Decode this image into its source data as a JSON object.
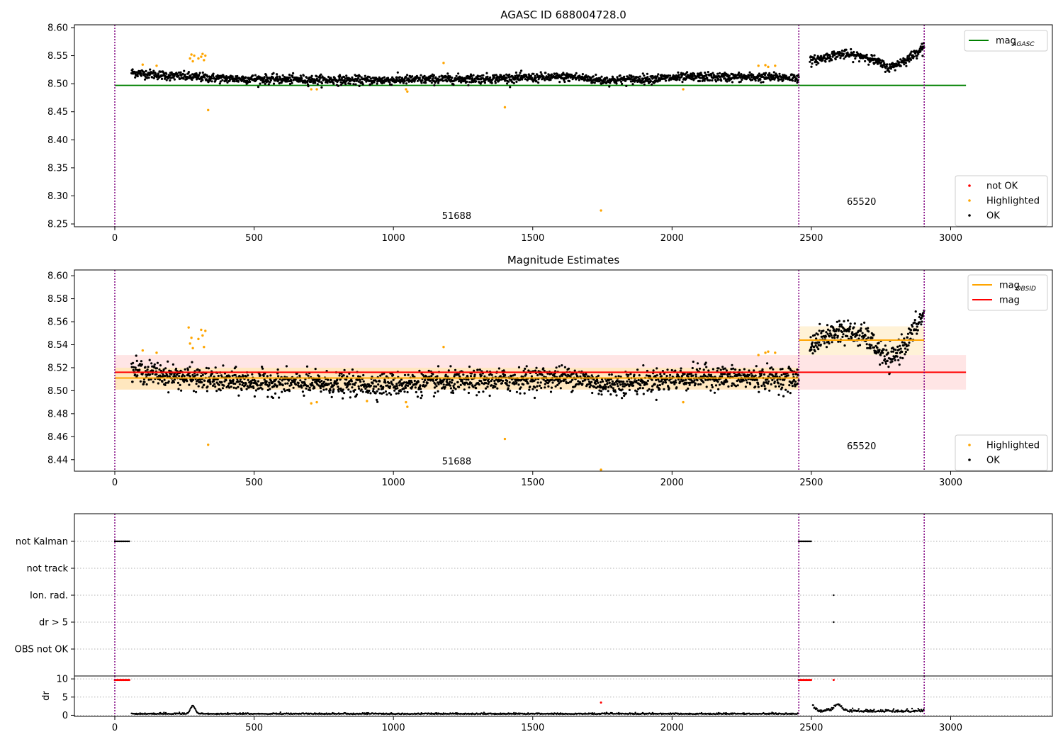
{
  "colors": {
    "ok": "#000000",
    "highlighted": "#ffa500",
    "not_ok": "#ff0000",
    "agasc_line": "#008000",
    "obsid_line": "#ffa500",
    "mag_line": "#ff0000",
    "obsid_band": "#ffe8b8",
    "mag_band": "#ffe0e0",
    "obsid_boundary": "#800080",
    "grid": "#b0b0b0"
  },
  "chart_data": [
    {
      "type": "scatter",
      "title": "AGASC ID 688004728.0",
      "xlim": [
        -145,
        3365
      ],
      "ylim": [
        8.245,
        8.605
      ],
      "xticks": [
        0,
        500,
        1000,
        1500,
        2000,
        2500,
        3000
      ],
      "yticks": [
        8.25,
        8.3,
        8.35,
        8.4,
        8.45,
        8.5,
        8.55,
        8.6
      ],
      "x_tick_labels": [
        "0",
        "500",
        "1000",
        "1500",
        "2000",
        "2500",
        "3000"
      ],
      "y_tick_labels": [
        "8.25",
        "8.30",
        "8.35",
        "8.40",
        "8.45",
        "8.50",
        "8.55",
        "8.60"
      ],
      "obsid_boundaries": [
        0,
        2455,
        2905
      ],
      "hlines": [
        {
          "name": "mag_AGASC",
          "y": 8.497,
          "x0": 0,
          "x1": 3055
        }
      ],
      "obsid_annotations": [
        {
          "text": "51688",
          "x": 1227,
          "y": 8.259
        },
        {
          "text": "65520",
          "x": 2680,
          "y": 8.284
        }
      ],
      "segments": [
        {
          "x0": 60,
          "x1": 2455,
          "base": 8.51,
          "noise": 0.004,
          "trend": [
            [
              60,
              8.52
            ],
            [
              200,
              8.514
            ],
            [
              400,
              8.509
            ],
            [
              900,
              8.506
            ],
            [
              1300,
              8.509
            ],
            [
              1650,
              8.512
            ],
            [
              1750,
              8.506
            ],
            [
              2100,
              8.512
            ],
            [
              2455,
              8.511
            ]
          ]
        },
        {
          "x0": 2495,
          "x1": 2905,
          "base": 8.545,
          "noise": 0.004,
          "trend": [
            [
              2495,
              8.54
            ],
            [
              2600,
              8.553
            ],
            [
              2700,
              8.548
            ],
            [
              2780,
              8.528
            ],
            [
              2850,
              8.545
            ],
            [
              2905,
              8.567
            ]
          ]
        }
      ],
      "highlighted_points": [
        [
          270,
          8.545
        ],
        [
          275,
          8.552
        ],
        [
          280,
          8.54
        ],
        [
          285,
          8.55
        ],
        [
          300,
          8.545
        ],
        [
          310,
          8.548
        ],
        [
          315,
          8.553
        ],
        [
          320,
          8.542
        ],
        [
          325,
          8.55
        ],
        [
          100,
          8.534
        ],
        [
          150,
          8.532
        ],
        [
          335,
          8.453
        ],
        [
          705,
          8.49
        ],
        [
          725,
          8.49
        ],
        [
          1045,
          8.49
        ],
        [
          1050,
          8.486
        ],
        [
          1180,
          8.537
        ],
        [
          1400,
          8.458
        ],
        [
          1745,
          8.274
        ],
        [
          2040,
          8.49
        ],
        [
          2310,
          8.532
        ],
        [
          2335,
          8.533
        ],
        [
          2345,
          8.53
        ],
        [
          2370,
          8.532
        ]
      ],
      "legends": [
        {
          "position": "top-right",
          "entries": [
            {
              "label": "mag",
              "sub": "AGASC",
              "marker": "line",
              "color": "#008000"
            }
          ]
        },
        {
          "position": "bottom-right",
          "entries": [
            {
              "label": "not OK",
              "marker": "dot",
              "color": "#ff0000"
            },
            {
              "label": "Highlighted",
              "marker": "dot",
              "color": "#ffa500"
            },
            {
              "label": "OK",
              "marker": "dot",
              "color": "#000000"
            }
          ]
        }
      ]
    },
    {
      "type": "scatter",
      "title": "Magnitude Estimates",
      "xlim": [
        -145,
        3365
      ],
      "ylim": [
        8.43,
        8.605
      ],
      "xticks": [
        0,
        500,
        1000,
        1500,
        2000,
        2500,
        3000
      ],
      "yticks": [
        8.44,
        8.46,
        8.48,
        8.5,
        8.52,
        8.54,
        8.56,
        8.58,
        8.6
      ],
      "x_tick_labels": [
        "0",
        "500",
        "1000",
        "1500",
        "2000",
        "2500",
        "3000"
      ],
      "y_tick_labels": [
        "8.44",
        "8.46",
        "8.48",
        "8.50",
        "8.52",
        "8.54",
        "8.56",
        "8.58",
        "8.60"
      ],
      "obsid_boundaries": [
        0,
        2455,
        2905
      ],
      "bands": [
        {
          "name": "mag",
          "x0": 0,
          "x1": 3055,
          "y0": 8.501,
          "y1": 8.531,
          "color": "#ffe0e0"
        },
        {
          "name": "mag_OBSID_1",
          "x0": 0,
          "x1": 2455,
          "y0": 8.501,
          "y1": 8.52,
          "color": "#ffe8b8"
        },
        {
          "name": "mag_OBSID_2",
          "x0": 2455,
          "x1": 2905,
          "y0": 8.531,
          "y1": 8.556,
          "color": "#fff0d0"
        }
      ],
      "hlines": [
        {
          "name": "mag",
          "y": 8.516,
          "x0": 0,
          "x1": 3055,
          "color": "#ff0000"
        },
        {
          "name": "mag_OBSID",
          "y": 8.511,
          "x0": 0,
          "x1": 2455,
          "color": "#ffa500"
        },
        {
          "name": "mag_OBSID",
          "y": 8.544,
          "x0": 2455,
          "x1": 2905,
          "color": "#ffa500"
        }
      ],
      "obsid_annotations": [
        {
          "text": "51688",
          "x": 1227,
          "y": 8.436
        },
        {
          "text": "65520",
          "x": 2680,
          "y": 8.449
        }
      ],
      "segments": [
        {
          "x0": 60,
          "x1": 2455,
          "base": 8.51,
          "noise": 0.005,
          "trend": [
            [
              60,
              8.518
            ],
            [
              200,
              8.513
            ],
            [
              400,
              8.508
            ],
            [
              900,
              8.505
            ],
            [
              1300,
              8.508
            ],
            [
              1650,
              8.512
            ],
            [
              1750,
              8.505
            ],
            [
              2100,
              8.512
            ],
            [
              2455,
              8.51
            ]
          ]
        },
        {
          "x0": 2495,
          "x1": 2905,
          "base": 8.545,
          "noise": 0.005,
          "trend": [
            [
              2495,
              8.54
            ],
            [
              2600,
              8.553
            ],
            [
              2700,
              8.546
            ],
            [
              2780,
              8.525
            ],
            [
              2850,
              8.545
            ],
            [
              2905,
              8.567
            ]
          ]
        }
      ],
      "highlighted_points": [
        [
          265,
          8.555
        ],
        [
          270,
          8.541
        ],
        [
          275,
          8.546
        ],
        [
          280,
          8.537
        ],
        [
          300,
          8.545
        ],
        [
          310,
          8.553
        ],
        [
          315,
          8.548
        ],
        [
          320,
          8.538
        ],
        [
          325,
          8.552
        ],
        [
          100,
          8.535
        ],
        [
          150,
          8.533
        ],
        [
          335,
          8.453
        ],
        [
          705,
          8.489
        ],
        [
          725,
          8.49
        ],
        [
          905,
          8.491
        ],
        [
          1045,
          8.49
        ],
        [
          1050,
          8.486
        ],
        [
          1180,
          8.538
        ],
        [
          1400,
          8.458
        ],
        [
          1745,
          8.431
        ],
        [
          2040,
          8.49
        ],
        [
          2310,
          8.531
        ],
        [
          2335,
          8.533
        ],
        [
          2345,
          8.534
        ],
        [
          2370,
          8.533
        ]
      ],
      "legends": [
        {
          "position": "top-right",
          "entries": [
            {
              "label": "mag",
              "sub": "OBSID",
              "marker": "line",
              "color": "#ffa500"
            },
            {
              "label": "mag",
              "marker": "line",
              "color": "#ff0000"
            }
          ]
        },
        {
          "position": "bottom-right",
          "entries": [
            {
              "label": "Highlighted",
              "marker": "dot",
              "color": "#ffa500"
            },
            {
              "label": "OK",
              "marker": "dot",
              "color": "#000000"
            }
          ]
        }
      ]
    },
    {
      "type": "scatter",
      "title": "",
      "xlim": [
        -145,
        3365
      ],
      "categories": [
        "not Kalman",
        "not track",
        "Ion. rad.",
        "dr > 5",
        "OBS not OK"
      ],
      "obsid_boundaries": [
        0,
        2455,
        2905
      ],
      "flag_runs": [
        {
          "category": "not Kalman",
          "x0": 0,
          "x1": 55
        },
        {
          "category": "not Kalman",
          "x0": 2455,
          "x1": 2500
        }
      ],
      "flag_points": [
        {
          "category": "Ion. rad.",
          "x": 2580
        },
        {
          "category": "dr > 5",
          "x": 2580
        }
      ]
    },
    {
      "type": "scatter",
      "title": "",
      "ylabel": "dr",
      "xlim": [
        -145,
        3365
      ],
      "ylim": [
        -0.3,
        10.8
      ],
      "xticks": [
        0,
        500,
        1000,
        1500,
        2000,
        2500,
        3000
      ],
      "yticks": [
        0,
        5,
        10
      ],
      "x_tick_labels": [
        "0",
        "500",
        "1000",
        "1500",
        "2000",
        "2500",
        "3000"
      ],
      "y_tick_labels": [
        "0",
        "5",
        "10"
      ],
      "obsid_boundaries": [
        0,
        2455,
        2905
      ],
      "not_ok_runs": [
        {
          "x0": 0,
          "x1": 55,
          "y": 9.7
        },
        {
          "x0": 2455,
          "x1": 2500,
          "y": 9.7
        }
      ],
      "not_ok_points": [
        [
          2580,
          9.7
        ],
        [
          1745,
          3.5
        ]
      ],
      "ok_segments": [
        {
          "x0": 60,
          "x1": 2455,
          "base": 0.3,
          "noise": 0.15,
          "bumps": [
            [
              280,
              2.2,
              12
            ]
          ]
        },
        {
          "x0": 2505,
          "x1": 2905,
          "base": 0.9,
          "noise": 0.35,
          "bumps": [
            [
              2500,
              1.6,
              15
            ],
            [
              2595,
              1.9,
              20
            ]
          ]
        }
      ]
    }
  ]
}
